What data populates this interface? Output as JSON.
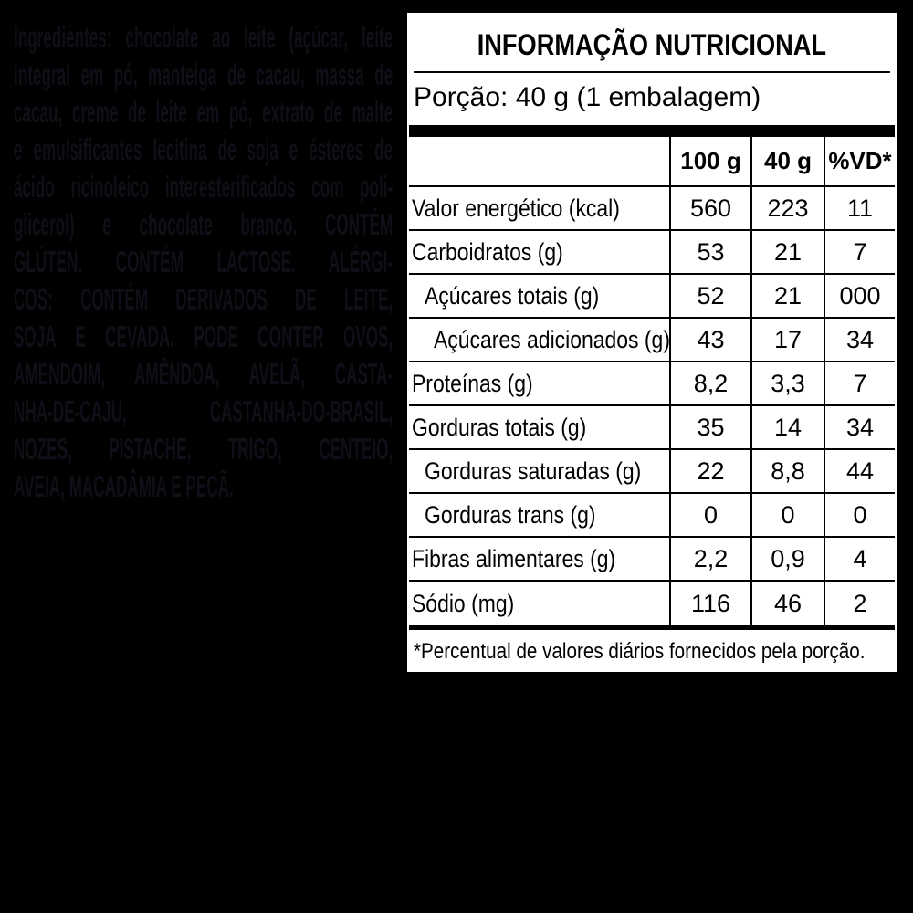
{
  "colors": {
    "background": "#000000",
    "panel_background": "#ffffff",
    "panel_text": "#000000",
    "ingredients_text": "#0f0f17"
  },
  "ingredients": {
    "lines": [
      "Ingredientes: chocolate ao leite (açúcar, leite",
      "integral em pó, manteiga de cacau, massa de",
      "cacau, creme de leite em pó, extrato de malte",
      "e emulsificantes lecitina de soja e ésteres de",
      "ácido ricinoleico interesterificados com poli-",
      "glicerol) e chocolate branco. CONTÉM",
      "GLÚTEN. CONTÉM LACTOSE. ALÉRGI-",
      "COS: CONTÉM DERIVADOS DE LEITE,",
      "SOJA E CEVADA. PODE CONTER OVOS,",
      "AMENDOIM, AMÊNDOA, AVELÃ, CASTA-",
      "NHA-DE-CAJU, CASTANHA-DO-BRASIL,",
      "NOZES, PISTACHE, TRIGO, CENTEIO,",
      "AVEIA, MACADÂMIA E PECÃ."
    ]
  },
  "panel": {
    "title": "INFORMAÇÃO NUTRICIONAL",
    "serving": "Porção: 40 g (1 embalagem)",
    "columns": [
      "100 g",
      "40 g",
      "%VD*"
    ],
    "rows": [
      {
        "label": "Valor energético (kcal)",
        "indent": 0,
        "v100": "560",
        "v40": "223",
        "vd": "11"
      },
      {
        "label": "Carboidratos (g)",
        "indent": 0,
        "v100": "53",
        "v40": "21",
        "vd": "7"
      },
      {
        "label": "Açúcares totais (g)",
        "indent": 1,
        "v100": "52",
        "v40": "21",
        "vd": "000"
      },
      {
        "label": "Açúcares adicionados (g)",
        "indent": 2,
        "v100": "43",
        "v40": "17",
        "vd": "34"
      },
      {
        "label": "Proteínas (g)",
        "indent": 0,
        "v100": "8,2",
        "v40": "3,3",
        "vd": "7"
      },
      {
        "label": "Gorduras totais (g)",
        "indent": 0,
        "v100": "35",
        "v40": "14",
        "vd": "34"
      },
      {
        "label": "Gorduras saturadas (g)",
        "indent": 1,
        "v100": "22",
        "v40": "8,8",
        "vd": "44"
      },
      {
        "label": "Gorduras trans (g)",
        "indent": 1,
        "v100": "0",
        "v40": "0",
        "vd": "0"
      },
      {
        "label": "Fibras alimentares (g)",
        "indent": 0,
        "v100": "2,2",
        "v40": "0,9",
        "vd": "4"
      },
      {
        "label": "Sódio (mg)",
        "indent": 0,
        "v100": "116",
        "v40": "46",
        "vd": "2"
      }
    ],
    "footnote": "*Percentual de valores diários fornecidos pela porção."
  }
}
